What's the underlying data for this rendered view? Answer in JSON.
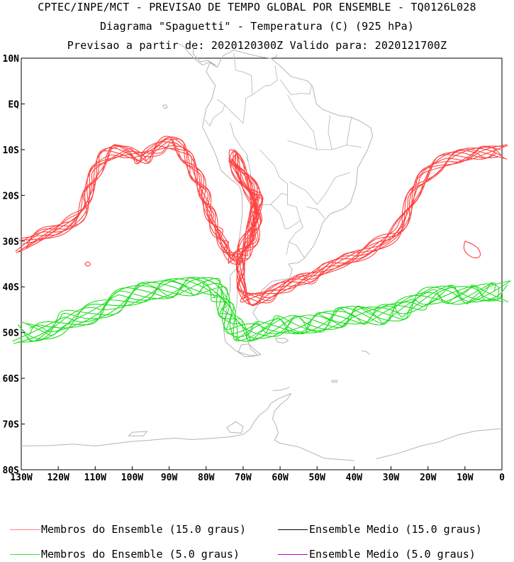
{
  "header": {
    "line1": "CPTEC/INPE/MCT - PREVISAO DE TEMPO GLOBAL POR ENSEMBLE - TQ0126L028",
    "line2": "Diagrama \"Spaguetti\" - Temperatura (C) (925 hPa)",
    "line3": "Previsao a partir de: 2020120300Z  Valido para: 2020121700Z"
  },
  "map": {
    "lat_labels": [
      "10N",
      "EQ",
      "10S",
      "20S",
      "30S",
      "40S",
      "50S",
      "60S",
      "70S",
      "80S"
    ],
    "lon_labels": [
      "130W",
      "120W",
      "110W",
      "100W",
      "90W",
      "80W",
      "70W",
      "60W",
      "50W",
      "40W",
      "30W",
      "20W",
      "10W",
      "0"
    ],
    "lat_range": [
      10,
      -80
    ],
    "lon_range": [
      -130,
      0
    ],
    "coast_color": "#b4b4b4",
    "contours": [
      {
        "name": "Membros do Ensemble (15.0 graus)",
        "color": "#ff4040",
        "members": 10
      },
      {
        "name": "Membros do Ensemble (5.0 graus)",
        "color": "#20dd20",
        "members": 10
      }
    ]
  },
  "legend": {
    "items": [
      {
        "label": "Membros do Ensemble (15.0 graus)",
        "color": "#ff8080"
      },
      {
        "label": "Ensemble Medio (15.0 graus)",
        "color": "#000000"
      },
      {
        "label": "Membros do Ensemble (5.0 graus)",
        "color": "#40dd40"
      },
      {
        "label": "Ensemble Medio (5.0 graus)",
        "color": "#c000c0"
      }
    ]
  }
}
